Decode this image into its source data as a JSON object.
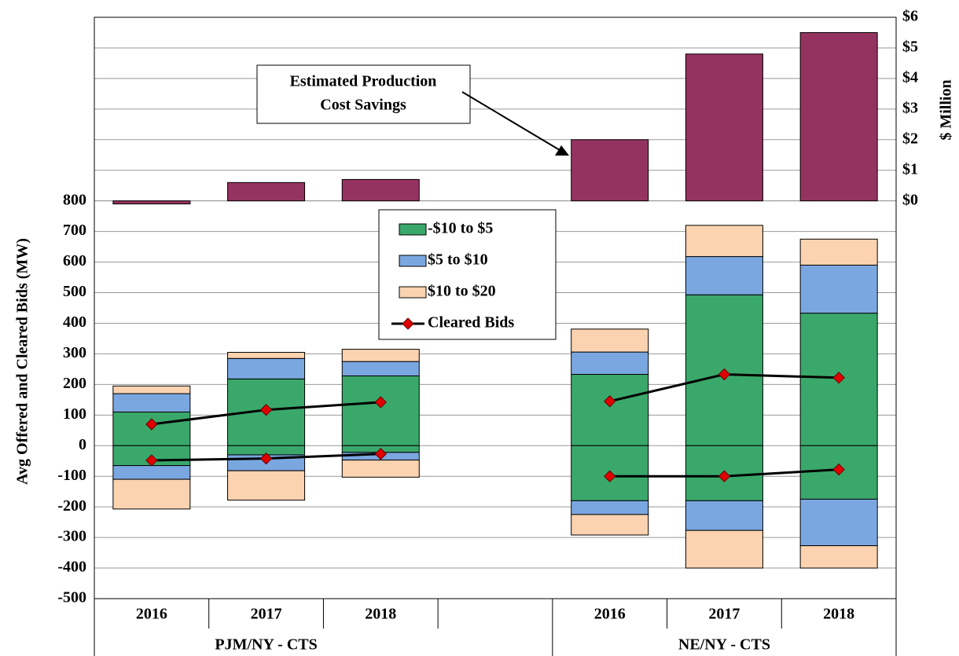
{
  "chart_data": {
    "type": "stacked-bar-line",
    "categories": [
      "2016",
      "2017",
      "2018",
      null,
      "2016",
      "2017",
      "2018"
    ],
    "groups": [
      "PJM/NY - CTS",
      "NE/NY - CTS"
    ],
    "y_label": "Avg Offered and Cleared Bids (MW)",
    "y2_label": "$ Million",
    "ylim": [
      -500,
      1400
    ],
    "yticks": [
      -500,
      -400,
      -300,
      -200,
      -100,
      0,
      100,
      200,
      300,
      400,
      500,
      600,
      700,
      800
    ],
    "y2lim": [
      -13,
      6
    ],
    "y2ticks": [
      {
        "value": 0,
        "label": "$0"
      },
      {
        "value": 1,
        "label": "$1"
      },
      {
        "value": 2,
        "label": "$2"
      },
      {
        "value": 3,
        "label": "$3"
      },
      {
        "value": 4,
        "label": "$4"
      },
      {
        "value": 5,
        "label": "$5"
      },
      {
        "value": 6,
        "label": "$6"
      }
    ],
    "grid": true,
    "series": [
      {
        "name": "-$10 to $5",
        "color": "#3aa86b",
        "values": [
          110,
          218,
          228,
          null,
          233,
          493,
          433
        ],
        "values_below": [
          -65,
          -30,
          -22,
          null,
          -180,
          -180,
          -175
        ]
      },
      {
        "name": "$5 to $10",
        "color": "#7ba7e0",
        "values": [
          60,
          67,
          47,
          null,
          73,
          125,
          157
        ],
        "values_below": [
          -45,
          -52,
          -25,
          null,
          -45,
          -97,
          -152
        ]
      },
      {
        "name": "$10 to $20",
        "color": "#fbd3b0",
        "values": [
          25,
          20,
          40,
          null,
          75,
          102,
          85
        ],
        "values_below": [
          -97,
          -96,
          -56,
          null,
          -67,
          -123,
          -73
        ]
      },
      {
        "name": "Cleared Bids",
        "color": "#000000",
        "marker_color": "#e00000",
        "values": [
          70,
          117,
          142,
          null,
          145,
          233,
          222
        ],
        "values_below": [
          -48,
          -42,
          -27,
          null,
          -100,
          -100,
          -78
        ]
      },
      {
        "name": "Estimated Production Cost Savings",
        "color": "#953360",
        "axis": "y2",
        "values": [
          -0.1,
          0.6,
          0.7,
          null,
          2.0,
          4.8,
          5.5
        ]
      }
    ],
    "annotation": [
      "Estimated Production",
      "Cost Savings"
    ]
  }
}
